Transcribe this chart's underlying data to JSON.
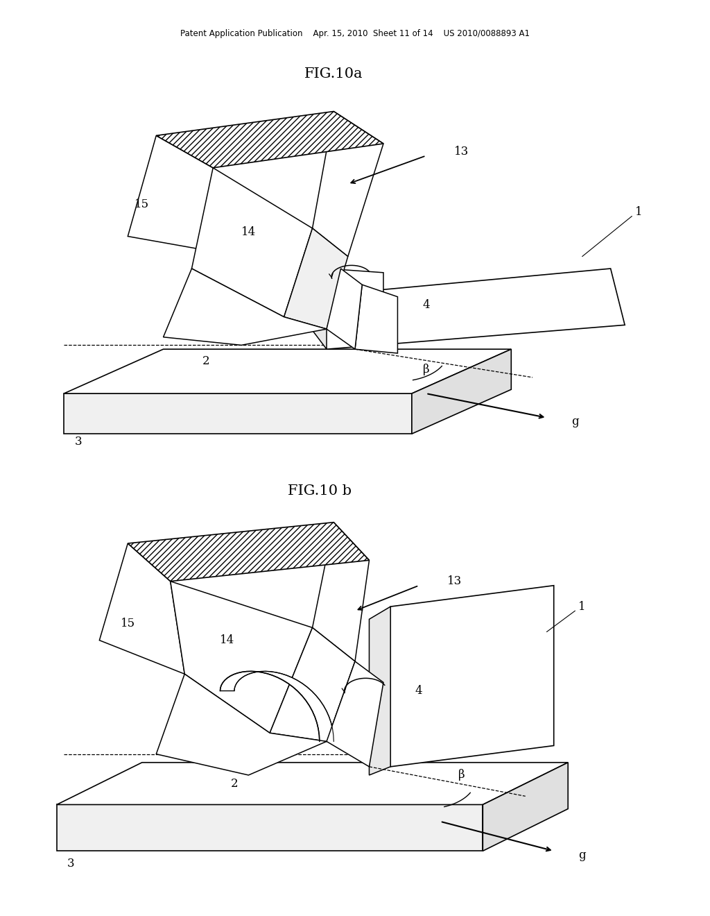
{
  "background_color": "#ffffff",
  "header_text": "Patent Application Publication    Apr. 15, 2010  Sheet 11 of 14    US 2010/0088893 A1",
  "fig10a_title": "FIG.10a",
  "fig10b_title": "FIG.10 b",
  "font_size_title": 15,
  "font_size_label": 12,
  "font_size_header": 8.5
}
